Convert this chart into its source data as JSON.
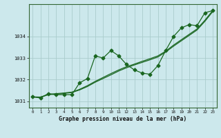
{
  "title": "Graphe pression niveau de la mer (hPa)",
  "background_color": "#cce8ec",
  "grid_color": "#aacccc",
  "line_color": "#1a6620",
  "xlim": [
    -0.5,
    23.5
  ],
  "ylim": [
    1030.7,
    1035.5
  ],
  "yticks": [
    1031,
    1032,
    1033,
    1034
  ],
  "xticks": [
    0,
    1,
    2,
    3,
    4,
    5,
    6,
    7,
    8,
    9,
    10,
    11,
    12,
    13,
    14,
    15,
    16,
    17,
    18,
    19,
    20,
    21,
    22,
    23
  ],
  "series_main": [
    1031.2,
    1031.15,
    1031.35,
    1031.3,
    1031.3,
    1031.3,
    1031.85,
    1032.05,
    1033.1,
    1033.0,
    1033.35,
    1033.1,
    1032.7,
    1032.45,
    1032.3,
    1032.25,
    1032.65,
    1033.35,
    1034.0,
    1034.4,
    1034.55,
    1034.5,
    1035.1,
    1035.2
  ],
  "series_smooth1": [
    1031.2,
    1031.19,
    1031.32,
    1031.35,
    1031.38,
    1031.42,
    1031.55,
    1031.72,
    1031.92,
    1032.1,
    1032.28,
    1032.45,
    1032.6,
    1032.72,
    1032.85,
    1032.97,
    1033.1,
    1033.32,
    1033.6,
    1033.85,
    1034.1,
    1034.35,
    1034.75,
    1035.2
  ],
  "series_smooth2": [
    1031.2,
    1031.18,
    1031.3,
    1031.33,
    1031.36,
    1031.4,
    1031.52,
    1031.68,
    1031.88,
    1032.05,
    1032.22,
    1032.4,
    1032.55,
    1032.68,
    1032.8,
    1032.92,
    1033.05,
    1033.28,
    1033.55,
    1033.8,
    1034.05,
    1034.3,
    1034.7,
    1035.15
  ]
}
